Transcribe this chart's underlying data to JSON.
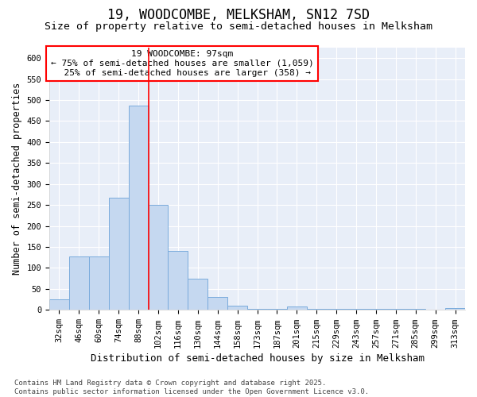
{
  "title1": "19, WOODCOMBE, MELKSHAM, SN12 7SD",
  "title2": "Size of property relative to semi-detached houses in Melksham",
  "xlabel": "Distribution of semi-detached houses by size in Melksham",
  "ylabel": "Number of semi-detached properties",
  "categories": [
    "32sqm",
    "46sqm",
    "60sqm",
    "74sqm",
    "88sqm",
    "102sqm",
    "116sqm",
    "130sqm",
    "144sqm",
    "158sqm",
    "173sqm",
    "187sqm",
    "201sqm",
    "215sqm",
    "229sqm",
    "243sqm",
    "257sqm",
    "271sqm",
    "285sqm",
    "299sqm",
    "313sqm"
  ],
  "values": [
    25,
    127,
    127,
    267,
    487,
    250,
    140,
    75,
    30,
    10,
    3,
    3,
    8,
    2,
    2,
    2,
    2,
    2,
    2,
    1,
    4
  ],
  "bar_color": "#c5d8f0",
  "bar_edge_color": "#7aabdc",
  "red_line_x": 4.5,
  "annotation_label": "19 WOODCOMBE: 97sqm",
  "annotation_smaller": "← 75% of semi-detached houses are smaller (1,059)",
  "annotation_larger": "25% of semi-detached houses are larger (358) →",
  "footer1": "Contains HM Land Registry data © Crown copyright and database right 2025.",
  "footer2": "Contains public sector information licensed under the Open Government Licence v3.0.",
  "ylim": [
    0,
    625
  ],
  "yticks": [
    0,
    50,
    100,
    150,
    200,
    250,
    300,
    350,
    400,
    450,
    500,
    550,
    600
  ],
  "bg_color": "#e8eef8",
  "grid_color": "#ffffff",
  "fig_color": "#ffffff",
  "title_fontsize": 12,
  "subtitle_fontsize": 9.5,
  "xlabel_fontsize": 9,
  "ylabel_fontsize": 8.5,
  "tick_fontsize": 7.5,
  "annot_fontsize": 8,
  "footer_fontsize": 6.5
}
